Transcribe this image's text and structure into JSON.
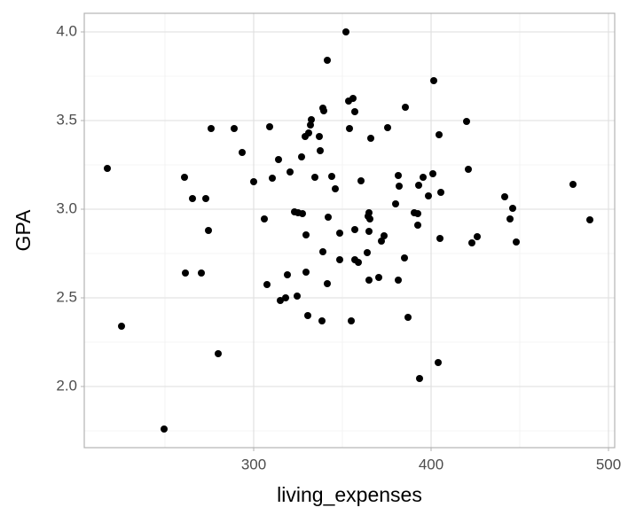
{
  "chart_data": {
    "type": "scatter",
    "x_label": "living_expenses",
    "y_label": "GPA",
    "x": [
      217.5,
      225.5,
      249.5,
      261,
      261.5,
      265.5,
      270.5,
      273,
      274.5,
      276,
      280,
      289,
      293.5,
      300,
      306,
      307.5,
      309,
      310.5,
      314,
      315,
      318,
      319,
      320.5,
      323,
      324.5,
      325,
      327,
      327.5,
      329,
      329.5,
      329.5,
      330.5,
      331,
      332,
      332.5,
      334.5,
      337,
      337.5,
      338.5,
      339,
      339.5,
      339,
      341.5,
      341.5,
      342,
      344,
      346,
      348.5,
      348.5,
      352,
      353.5,
      354,
      355,
      356,
      357,
      357,
      357,
      359,
      360.5,
      364,
      365,
      365,
      364.5,
      365,
      365.5,
      366,
      370.5,
      372,
      373.5,
      375.5,
      380,
      381.5,
      381.5,
      382,
      385,
      385.5,
      387,
      390.5,
      392.5,
      392.5,
      393,
      393.5,
      395.5,
      398.5,
      401,
      401.5,
      404,
      404.5,
      405,
      405.5,
      420,
      421,
      423,
      426,
      441.5,
      444.5,
      446,
      448,
      480,
      489.5
    ],
    "values": [
      3.23,
      2.34,
      1.76,
      3.18,
      2.64,
      3.06,
      2.64,
      3.06,
      2.88,
      3.455,
      2.185,
      3.455,
      3.32,
      3.155,
      2.945,
      2.575,
      3.465,
      3.175,
      3.28,
      2.485,
      2.5,
      2.63,
      3.21,
      2.985,
      2.51,
      2.98,
      3.295,
      2.975,
      3.41,
      2.855,
      2.645,
      2.4,
      3.43,
      3.475,
      3.505,
      3.18,
      3.41,
      3.33,
      2.37,
      3.57,
      3.555,
      2.76,
      3.84,
      2.58,
      2.955,
      3.185,
      3.115,
      2.865,
      2.715,
      4.0,
      3.61,
      3.455,
      2.37,
      3.625,
      3.55,
      2.885,
      2.715,
      2.7,
      3.16,
      2.755,
      2.875,
      2.6,
      2.96,
      2.98,
      2.945,
      3.4,
      2.615,
      2.82,
      2.85,
      3.46,
      3.03,
      2.6,
      3.19,
      3.13,
      2.725,
      3.575,
      2.39,
      2.98,
      2.975,
      2.91,
      3.135,
      2.045,
      3.18,
      3.075,
      3.2,
      3.725,
      2.135,
      3.42,
      2.835,
      3.095,
      3.495,
      3.225,
      2.81,
      2.845,
      3.07,
      2.945,
      3.005,
      2.815,
      3.14,
      2.94
    ],
    "color": "#000000",
    "xlim": [
      204.5,
      503.5
    ],
    "ylim": [
      1.655,
      4.105
    ],
    "xticks": [
      300,
      400,
      500
    ],
    "yticks": [
      {
        "value": 2,
        "label": "2.0"
      },
      {
        "value": 2.5,
        "label": "2.5"
      },
      {
        "value": 3,
        "label": "3.0"
      },
      {
        "value": 3.5,
        "label": "3.5"
      },
      {
        "value": 4,
        "label": "4.0"
      }
    ],
    "grid": true,
    "minor_grid": true
  }
}
